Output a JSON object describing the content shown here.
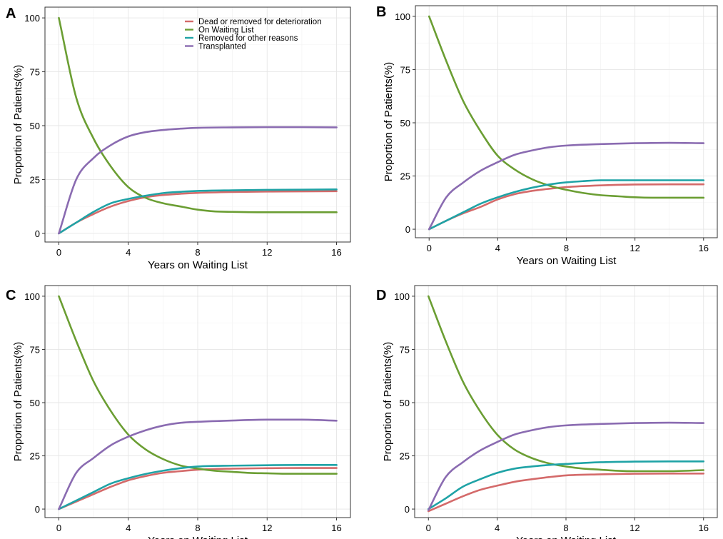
{
  "chart_data": [
    {
      "type": "line",
      "panel_label": "A",
      "xlabel": "Years on Waiting List",
      "ylabel": "Proportion of Patients(%)",
      "xlim": [
        -0.8,
        16.8
      ],
      "ylim": [
        -4,
        105
      ],
      "xticks": [
        0,
        4,
        8,
        12,
        16
      ],
      "yticks": [
        0,
        25,
        50,
        75,
        100
      ],
      "legend": {
        "position": "top-right",
        "entries": [
          "Dead or removed for deterioration",
          "On Waiting List",
          "Removed for other reasons",
          "Transplanted"
        ]
      },
      "series": [
        {
          "name": "Dead or removed for deterioration",
          "color": "#d46a6a",
          "x": [
            0,
            1,
            2,
            3,
            4,
            5,
            6,
            7,
            8,
            10,
            12,
            14,
            16
          ],
          "y": [
            0,
            5,
            9,
            12.5,
            15,
            16.8,
            17.8,
            18.4,
            18.8,
            19.2,
            19.4,
            19.5,
            19.6
          ]
        },
        {
          "name": "On Waiting List",
          "color": "#6b9e33",
          "x": [
            0,
            1,
            2,
            3,
            4,
            5,
            6,
            7,
            8,
            9,
            10,
            12,
            14,
            16
          ],
          "y": [
            100,
            63,
            44,
            31,
            21.5,
            16.5,
            14,
            12.5,
            11,
            10.2,
            10,
            9.8,
            9.8,
            9.8
          ]
        },
        {
          "name": "Removed for other reasons",
          "color": "#1fa3a6",
          "x": [
            0,
            1,
            2,
            3,
            4,
            5,
            6,
            7,
            8,
            10,
            12,
            14,
            16
          ],
          "y": [
            0,
            5,
            10,
            14,
            16,
            17.5,
            18.7,
            19.3,
            19.7,
            20,
            20.2,
            20.3,
            20.4
          ]
        },
        {
          "name": "Transplanted",
          "color": "#8a6bb1",
          "x": [
            0,
            1,
            2,
            3,
            4,
            5,
            6,
            7,
            8,
            10,
            12,
            14,
            16
          ],
          "y": [
            0,
            25,
            35,
            41,
            45,
            47,
            48,
            48.6,
            49,
            49.2,
            49.3,
            49.3,
            49.2
          ]
        }
      ]
    },
    {
      "type": "line",
      "panel_label": "B",
      "xlabel": "Years on Waiting List",
      "ylabel": "Proportion of Patients(%)",
      "xlim": [
        -0.8,
        16.8
      ],
      "ylim": [
        -4,
        105
      ],
      "xticks": [
        0,
        4,
        8,
        12,
        16
      ],
      "yticks": [
        0,
        25,
        50,
        75,
        100
      ],
      "series": [
        {
          "name": "Dead or removed for deterioration",
          "color": "#d46a6a",
          "x": [
            0,
            1,
            2,
            3,
            4,
            5,
            6,
            7,
            8,
            10,
            12,
            14,
            16
          ],
          "y": [
            0,
            4,
            7.5,
            10.5,
            14,
            16.5,
            18,
            19,
            19.8,
            20.6,
            21,
            21.1,
            21.1
          ]
        },
        {
          "name": "On Waiting List",
          "color": "#6b9e33",
          "x": [
            0,
            1,
            2,
            3,
            4,
            5,
            6,
            7,
            8,
            9,
            10,
            11,
            12,
            13,
            14,
            16
          ],
          "y": [
            100,
            79,
            60,
            46,
            34.5,
            28,
            23.5,
            20.5,
            18.5,
            17,
            16,
            15.5,
            15,
            14.8,
            14.8,
            14.8
          ]
        },
        {
          "name": "Removed for other reasons",
          "color": "#1fa3a6",
          "x": [
            0,
            1,
            2,
            3,
            4,
            5,
            6,
            7,
            8,
            9,
            10,
            12,
            14,
            16
          ],
          "y": [
            0,
            4,
            8,
            12,
            15,
            17.5,
            19.5,
            21,
            22,
            22.6,
            23,
            23,
            23,
            23
          ]
        },
        {
          "name": "Transplanted",
          "color": "#8a6bb1",
          "x": [
            0,
            1,
            2,
            3,
            4,
            5,
            6,
            7,
            8,
            10,
            12,
            14,
            16
          ],
          "y": [
            0,
            15,
            22,
            27.5,
            31.5,
            35,
            37,
            38.5,
            39.3,
            40,
            40.4,
            40.6,
            40.4
          ]
        }
      ]
    },
    {
      "type": "line",
      "panel_label": "C",
      "xlabel": "Years on Waiting List",
      "ylabel": "Proportion of Patients(%)",
      "xlim": [
        -0.8,
        16.8
      ],
      "ylim": [
        -4,
        105
      ],
      "xticks": [
        0,
        4,
        8,
        12,
        16
      ],
      "yticks": [
        0,
        25,
        50,
        75,
        100
      ],
      "series": [
        {
          "name": "Dead or removed for deterioration",
          "color": "#d46a6a",
          "x": [
            0,
            1,
            2,
            3,
            4,
            5,
            6,
            7,
            8,
            10,
            12,
            14,
            16
          ],
          "y": [
            0,
            3.5,
            7,
            10.5,
            13.5,
            15.5,
            17,
            17.8,
            18.5,
            19,
            19.2,
            19.3,
            19.3
          ]
        },
        {
          "name": "On Waiting List",
          "color": "#6b9e33",
          "x": [
            0,
            1,
            2,
            3,
            4,
            5,
            6,
            7,
            8,
            9,
            10,
            11,
            12,
            13,
            14,
            16
          ],
          "y": [
            100,
            79,
            60,
            46,
            35,
            28,
            23.5,
            20.5,
            19,
            18,
            17.5,
            17,
            16.8,
            16.6,
            16.6,
            16.6
          ]
        },
        {
          "name": "Removed for other reasons",
          "color": "#1fa3a6",
          "x": [
            0,
            1,
            2,
            3,
            4,
            5,
            6,
            7,
            8,
            10,
            12,
            14,
            16
          ],
          "y": [
            0,
            4,
            8,
            12,
            14.5,
            16.5,
            18,
            19.2,
            20,
            20.4,
            20.6,
            20.7,
            20.7
          ]
        },
        {
          "name": "Transplanted",
          "color": "#8a6bb1",
          "x": [
            0,
            1,
            2,
            3,
            4,
            5,
            6,
            7,
            8,
            10,
            12,
            14,
            16
          ],
          "y": [
            0,
            17,
            24,
            30,
            34,
            37,
            39.2,
            40.5,
            41,
            41.6,
            42,
            42,
            41.5
          ]
        }
      ]
    },
    {
      "type": "line",
      "panel_label": "D",
      "xlabel": "Years on Waiting List",
      "ylabel": "Proportion of Patients(%)",
      "xlim": [
        -0.8,
        16.8
      ],
      "ylim": [
        -4,
        105
      ],
      "xticks": [
        0,
        4,
        8,
        12,
        16
      ],
      "yticks": [
        0,
        25,
        50,
        75,
        100
      ],
      "series": [
        {
          "name": "Dead or removed for deterioration",
          "color": "#d46a6a",
          "x": [
            0,
            1,
            2,
            3,
            4,
            5,
            6,
            7,
            8,
            10,
            12,
            14,
            16
          ],
          "y": [
            -1,
            2.5,
            6,
            9,
            11,
            12.8,
            14,
            15,
            15.8,
            16.3,
            16.6,
            16.7,
            16.7
          ]
        },
        {
          "name": "On Waiting List",
          "color": "#6b9e33",
          "x": [
            0,
            1,
            2,
            3,
            4,
            5,
            6,
            7,
            8,
            9,
            10,
            11,
            12,
            13,
            14,
            16
          ],
          "y": [
            100,
            79,
            60,
            46,
            35,
            28,
            24,
            21.5,
            20,
            19,
            18.5,
            18,
            17.8,
            17.8,
            17.8,
            18.3
          ]
        },
        {
          "name": "Removed for other reasons",
          "color": "#1fa3a6",
          "x": [
            0,
            1,
            2,
            3,
            4,
            5,
            6,
            7,
            8,
            10,
            12,
            14,
            16
          ],
          "y": [
            0,
            5,
            10.5,
            14,
            17,
            19,
            20,
            20.7,
            21.2,
            22,
            22.3,
            22.4,
            22.4
          ]
        },
        {
          "name": "Transplanted",
          "color": "#8a6bb1",
          "x": [
            0,
            1,
            2,
            3,
            4,
            5,
            6,
            7,
            8,
            10,
            12,
            14,
            16
          ],
          "y": [
            -0.5,
            15,
            22,
            27.5,
            31.5,
            35,
            37,
            38.5,
            39.3,
            40,
            40.4,
            40.6,
            40.4
          ]
        }
      ]
    }
  ]
}
